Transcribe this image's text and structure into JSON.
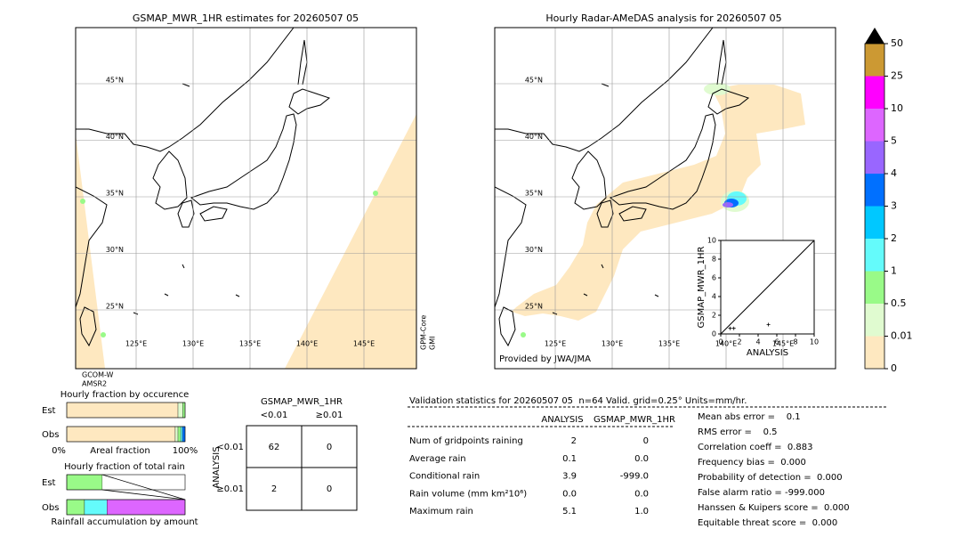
{
  "left_map": {
    "title": "GSMAP_MWR_1HR estimates for 20260507 05",
    "sat_labels": [
      "GCOM-W",
      "AMSR2"
    ],
    "sat_labels_right": [
      "GPM-Core",
      "GMI"
    ]
  },
  "right_map": {
    "title": "Hourly Radar-AMeDAS analysis for 20260507 05",
    "credit": "Provided by JWA/JMA"
  },
  "lat_ticks": [
    {
      "value": 45,
      "label": "45°N"
    },
    {
      "value": 40,
      "label": "40°N"
    },
    {
      "value": 35,
      "label": "35°N"
    },
    {
      "value": 30,
      "label": "30°N"
    },
    {
      "value": 25,
      "label": "25°N"
    }
  ],
  "lon_ticks": [
    {
      "value": 125,
      "label": "125°E"
    },
    {
      "value": 130,
      "label": "130°E"
    },
    {
      "value": 135,
      "label": "135°E"
    },
    {
      "value": 140,
      "label": "140°E"
    },
    {
      "value": 145,
      "label": "145°E"
    }
  ],
  "colorbar": {
    "ticks": [
      0,
      0.01,
      0.5,
      1,
      2,
      3,
      4,
      5,
      10,
      25,
      50
    ],
    "colors": [
      "#fee8c0",
      "#e0fbd0",
      "#99fa88",
      "#64fbfb",
      "#00c8ff",
      "#0070ff",
      "#9966ff",
      "#dd66ff",
      "#ff00ff",
      "#cc9933"
    ],
    "extend_color": "#000000"
  },
  "scatter": {
    "xlabel": "ANALYSIS",
    "ylabel": "GSMAP_MWR_1HR",
    "xlim": [
      0,
      10
    ],
    "ylim": [
      0,
      10
    ],
    "xticks": [
      0,
      2,
      4,
      6,
      8,
      10
    ],
    "yticks": [
      0,
      2,
      4,
      6,
      8,
      10
    ],
    "x": [
      1.0,
      1.4,
      5.1
    ],
    "y": [
      0.6,
      0.6,
      1.0
    ]
  },
  "occurrence": {
    "title": "Hourly fraction by occurence",
    "xlabel": "Areal fraction",
    "xticks": [
      {
        "value": 0,
        "label": "0%"
      },
      {
        "value": 100,
        "label": "100%"
      }
    ],
    "rows": [
      {
        "label": "Est",
        "values": [
          94,
          4,
          2
        ],
        "colors": [
          "#fee8c0",
          "#e0fbd0",
          "#99fa88"
        ]
      },
      {
        "label": "Obs",
        "values": [
          91.7,
          2.3,
          2.3,
          1.5,
          2.2
        ],
        "colors": [
          "#fee8c0",
          "#e0fbd0",
          "#99fa88",
          "#64fbfb",
          "#0070ff"
        ]
      }
    ]
  },
  "total_rain": {
    "title": "Hourly fraction of total rain",
    "xlabel": "Rainfall accumulation by amount",
    "rows": [
      {
        "label": "Est",
        "values": [
          30
        ],
        "colors": [
          "#99fa88"
        ]
      },
      {
        "label": "Obs",
        "values": [
          15,
          19,
          66
        ],
        "colors": [
          "#99fa88",
          "#64fbfb",
          "#dd66ff"
        ]
      }
    ]
  },
  "contingency": {
    "title": "GSMAP_MWR_1HR",
    "col_labels": [
      "<0.01",
      "≥0.01"
    ],
    "row_title": "ANALYSIS",
    "row_labels": [
      "<0.01",
      "≥0.01"
    ],
    "cells": [
      [
        "62",
        "0"
      ],
      [
        "2",
        "0"
      ]
    ]
  },
  "validation": {
    "header": "Validation statistics for 20260507 05  n=64 Valid. grid=0.25° Units=mm/hr.",
    "columns": [
      "ANALYSIS",
      "GSMAP_MWR_1HR"
    ],
    "rows": [
      {
        "label": "Num of gridpoints raining",
        "values": [
          "2",
          "0"
        ]
      },
      {
        "label": "Average rain",
        "values": [
          "0.1",
          "0.0"
        ]
      },
      {
        "label": "Conditional rain",
        "values": [
          "3.9",
          "-999.0"
        ]
      },
      {
        "label": "Rain volume (mm km²10⁶)",
        "values": [
          "0.0",
          "0.0"
        ]
      },
      {
        "label": "Maximum rain",
        "values": [
          "5.1",
          "1.0"
        ]
      }
    ]
  },
  "scores": [
    "Mean abs error =    0.1",
    "RMS error =    0.5",
    "Correlation coeff =  0.883",
    "Frequency bias =  0.000",
    "Probability of detection =  0.000",
    "False alarm ratio = -999.000",
    "Hanssen & Kuipers score =  0.000",
    "Equitable threat score =  0.000"
  ]
}
